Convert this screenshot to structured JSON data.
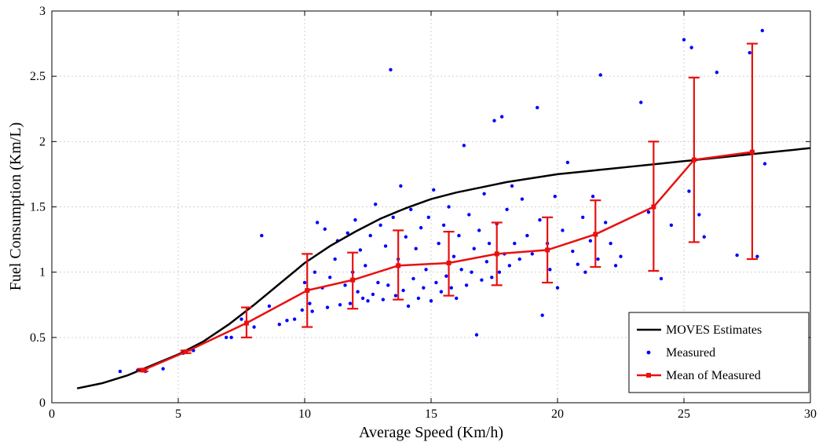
{
  "chart_data": {
    "type": "scatter",
    "title": "",
    "xlabel": "Average Speed (Km/h)",
    "ylabel": "Fuel Consumption (Km/L)",
    "xlim": [
      0,
      30
    ],
    "ylim": [
      0,
      3
    ],
    "xticks": [
      0,
      5,
      10,
      15,
      20,
      25,
      30
    ],
    "yticks": [
      0,
      0.5,
      1,
      1.5,
      2,
      2.5,
      3
    ],
    "xtick_labels": [
      "0",
      "5",
      "10",
      "15",
      "20",
      "25",
      "30"
    ],
    "ytick_labels": [
      "0",
      "0.5",
      "1",
      "1.5",
      "2",
      "2.5",
      "3"
    ],
    "grid": true,
    "legend_position": "bottom-right",
    "legend": [
      "MOVES Estimates",
      "Measured",
      "Mean of Measured"
    ],
    "colors": {
      "moves": "#000000",
      "measured": "#0000ff",
      "mean": "#e81010"
    },
    "series": [
      {
        "name": "MOVES Estimates",
        "kind": "line",
        "points": [
          [
            1,
            0.11
          ],
          [
            2,
            0.15
          ],
          [
            3,
            0.21
          ],
          [
            4,
            0.29
          ],
          [
            5,
            0.37
          ],
          [
            6,
            0.47
          ],
          [
            7,
            0.6
          ],
          [
            8,
            0.75
          ],
          [
            9,
            0.91
          ],
          [
            10,
            1.07
          ],
          [
            11,
            1.2
          ],
          [
            12,
            1.31
          ],
          [
            13,
            1.41
          ],
          [
            14,
            1.49
          ],
          [
            15,
            1.56
          ],
          [
            16,
            1.61
          ],
          [
            17,
            1.65
          ],
          [
            18,
            1.69
          ],
          [
            19,
            1.72
          ],
          [
            20,
            1.75
          ],
          [
            21,
            1.77
          ],
          [
            22,
            1.79
          ],
          [
            23,
            1.81
          ],
          [
            24,
            1.83
          ],
          [
            25,
            1.85
          ],
          [
            26,
            1.87
          ],
          [
            27,
            1.89
          ],
          [
            28,
            1.91
          ],
          [
            29,
            1.93
          ],
          [
            30,
            1.95
          ]
        ]
      },
      {
        "name": "Mean of Measured",
        "kind": "line_errorbar",
        "x": [
          3.6,
          5.3,
          7.7,
          10.1,
          11.9,
          13.7,
          15.7,
          17.6,
          19.6,
          21.5,
          23.8,
          25.4,
          27.7
        ],
        "y": [
          0.25,
          0.39,
          0.61,
          0.86,
          0.94,
          1.05,
          1.07,
          1.14,
          1.17,
          1.29,
          1.5,
          1.86,
          1.92
        ],
        "err_low": [
          0.24,
          0.38,
          0.5,
          0.58,
          0.72,
          0.79,
          0.82,
          0.9,
          0.92,
          1.04,
          1.01,
          1.23,
          1.1
        ],
        "err_high": [
          0.26,
          0.4,
          0.73,
          1.14,
          1.15,
          1.32,
          1.31,
          1.38,
          1.42,
          1.55,
          2.0,
          2.49,
          2.75
        ]
      },
      {
        "name": "Measured",
        "kind": "scatter",
        "points": [
          [
            2.7,
            0.24
          ],
          [
            3.4,
            0.25
          ],
          [
            3.7,
            0.24
          ],
          [
            4.4,
            0.26
          ],
          [
            5.2,
            0.38
          ],
          [
            5.6,
            0.4
          ],
          [
            6.9,
            0.5
          ],
          [
            7.1,
            0.5
          ],
          [
            7.5,
            0.64
          ],
          [
            8.0,
            0.58
          ],
          [
            8.3,
            1.28
          ],
          [
            8.6,
            0.74
          ],
          [
            9.0,
            0.6
          ],
          [
            9.3,
            0.63
          ],
          [
            9.6,
            0.64
          ],
          [
            9.9,
            0.71
          ],
          [
            10.0,
            0.92
          ],
          [
            10.2,
            0.76
          ],
          [
            10.3,
            0.7
          ],
          [
            10.4,
            1.0
          ],
          [
            10.5,
            1.38
          ],
          [
            10.7,
            0.88
          ],
          [
            10.8,
            1.33
          ],
          [
            10.9,
            0.73
          ],
          [
            11.0,
            0.96
          ],
          [
            11.2,
            1.1
          ],
          [
            11.3,
            1.24
          ],
          [
            11.4,
            0.75
          ],
          [
            11.6,
            0.9
          ],
          [
            11.7,
            1.3
          ],
          [
            11.8,
            0.76
          ],
          [
            11.9,
            1.0
          ],
          [
            12.0,
            1.4
          ],
          [
            12.1,
            0.85
          ],
          [
            12.2,
            1.17
          ],
          [
            12.3,
            0.8
          ],
          [
            12.4,
            1.05
          ],
          [
            12.5,
            0.78
          ],
          [
            12.6,
            1.28
          ],
          [
            12.7,
            0.83
          ],
          [
            12.8,
            1.52
          ],
          [
            12.9,
            0.92
          ],
          [
            13.0,
            1.36
          ],
          [
            13.1,
            0.79
          ],
          [
            13.2,
            1.2
          ],
          [
            13.3,
            0.9
          ],
          [
            13.4,
            2.55
          ],
          [
            13.5,
            1.42
          ],
          [
            13.6,
            0.82
          ],
          [
            13.7,
            1.1
          ],
          [
            13.8,
            1.66
          ],
          [
            13.9,
            0.86
          ],
          [
            14.0,
            1.27
          ],
          [
            14.1,
            0.74
          ],
          [
            14.2,
            1.48
          ],
          [
            14.3,
            0.95
          ],
          [
            14.4,
            1.18
          ],
          [
            14.5,
            0.8
          ],
          [
            14.6,
            1.34
          ],
          [
            14.7,
            0.88
          ],
          [
            14.8,
            1.02
          ],
          [
            14.9,
            1.42
          ],
          [
            15.0,
            0.78
          ],
          [
            15.1,
            1.63
          ],
          [
            15.2,
            0.92
          ],
          [
            15.3,
            1.22
          ],
          [
            15.4,
            0.85
          ],
          [
            15.5,
            1.36
          ],
          [
            15.6,
            0.97
          ],
          [
            15.7,
            1.5
          ],
          [
            15.8,
            0.88
          ],
          [
            15.9,
            1.12
          ],
          [
            16.0,
            0.8
          ],
          [
            16.1,
            1.28
          ],
          [
            16.2,
            1.02
          ],
          [
            16.3,
            1.97
          ],
          [
            16.4,
            0.9
          ],
          [
            16.5,
            1.44
          ],
          [
            16.6,
            1.0
          ],
          [
            16.7,
            1.18
          ],
          [
            16.8,
            0.52
          ],
          [
            16.9,
            1.32
          ],
          [
            17.0,
            0.94
          ],
          [
            17.1,
            1.6
          ],
          [
            17.2,
            1.08
          ],
          [
            17.3,
            1.22
          ],
          [
            17.4,
            0.96
          ],
          [
            17.5,
            2.16
          ],
          [
            17.6,
            1.37
          ],
          [
            17.7,
            1.0
          ],
          [
            17.8,
            2.19
          ],
          [
            17.9,
            1.14
          ],
          [
            18.0,
            1.48
          ],
          [
            18.1,
            1.05
          ],
          [
            18.2,
            1.66
          ],
          [
            18.3,
            1.22
          ],
          [
            18.5,
            1.1
          ],
          [
            18.6,
            1.56
          ],
          [
            18.8,
            1.28
          ],
          [
            19.0,
            1.14
          ],
          [
            19.2,
            2.26
          ],
          [
            19.3,
            1.4
          ],
          [
            19.4,
            0.67
          ],
          [
            19.6,
            1.22
          ],
          [
            19.7,
            1.02
          ],
          [
            19.9,
            1.58
          ],
          [
            20.0,
            0.88
          ],
          [
            20.2,
            1.32
          ],
          [
            20.4,
            1.84
          ],
          [
            20.6,
            1.16
          ],
          [
            20.8,
            1.06
          ],
          [
            21.0,
            1.42
          ],
          [
            21.1,
            1.0
          ],
          [
            21.3,
            1.24
          ],
          [
            21.4,
            1.58
          ],
          [
            21.6,
            1.1
          ],
          [
            21.7,
            2.51
          ],
          [
            21.9,
            1.38
          ],
          [
            22.1,
            1.22
          ],
          [
            22.3,
            1.05
          ],
          [
            22.5,
            1.12
          ],
          [
            23.3,
            2.3
          ],
          [
            23.6,
            1.46
          ],
          [
            24.1,
            0.95
          ],
          [
            24.5,
            1.36
          ],
          [
            25.0,
            2.78
          ],
          [
            25.2,
            1.62
          ],
          [
            25.3,
            2.72
          ],
          [
            25.6,
            1.44
          ],
          [
            25.8,
            1.27
          ],
          [
            26.3,
            2.53
          ],
          [
            27.1,
            1.13
          ],
          [
            27.6,
            2.68
          ],
          [
            27.9,
            1.12
          ],
          [
            28.1,
            2.85
          ],
          [
            28.2,
            1.83
          ]
        ]
      }
    ]
  }
}
